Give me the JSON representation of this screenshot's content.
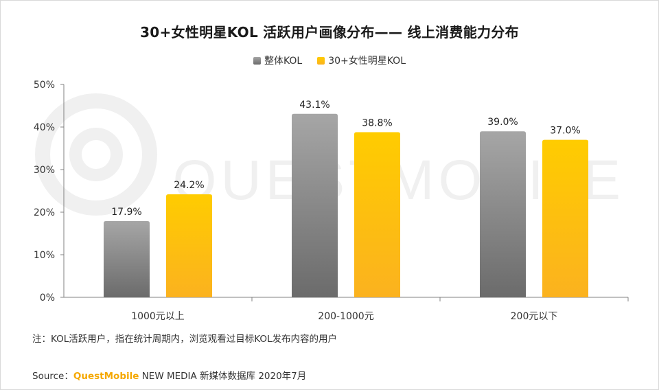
{
  "chart_data": {
    "type": "bar",
    "title": "30+女性明星KOL 活跃用户画像分布—— 线上消费能力分布",
    "categories": [
      "1000元以上",
      "200-1000元",
      "200元以下"
    ],
    "series": [
      {
        "name": "整体KOL",
        "values": [
          17.9,
          43.1,
          39.0
        ],
        "labels": [
          "17.9%",
          "43.1%",
          "39.0%"
        ]
      },
      {
        "name": "30+女性明星KOL",
        "values": [
          24.2,
          38.8,
          37.0
        ],
        "labels": [
          "24.2%",
          "38.8%",
          "37.0%"
        ]
      }
    ],
    "y_ticks": [
      "0%",
      "10%",
      "20%",
      "30%",
      "40%",
      "50%"
    ],
    "ylim": [
      0,
      50
    ],
    "xlabel": "",
    "ylabel": "",
    "grid": false,
    "legend_position": "top-center"
  },
  "colors": {
    "series_1_top": "#a6a6a6",
    "series_1_bottom": "#6b6b6b",
    "series_2_top": "#ffcc00",
    "series_2_bottom": "#fbb21f",
    "watermark": "#f0f0f0"
  },
  "watermark": {
    "text": "QUESTMOBILE",
    "icon": "questmobile-logo-icon"
  },
  "note": "注：KOL活跃用户，指在统计周期内，浏览观看过目标KOL发布内容的用户",
  "source": {
    "prefix": "Source：",
    "brand": "QuestMobile",
    "suffix": "NEW MEDIA 新媒体数据库 2020年7月"
  }
}
